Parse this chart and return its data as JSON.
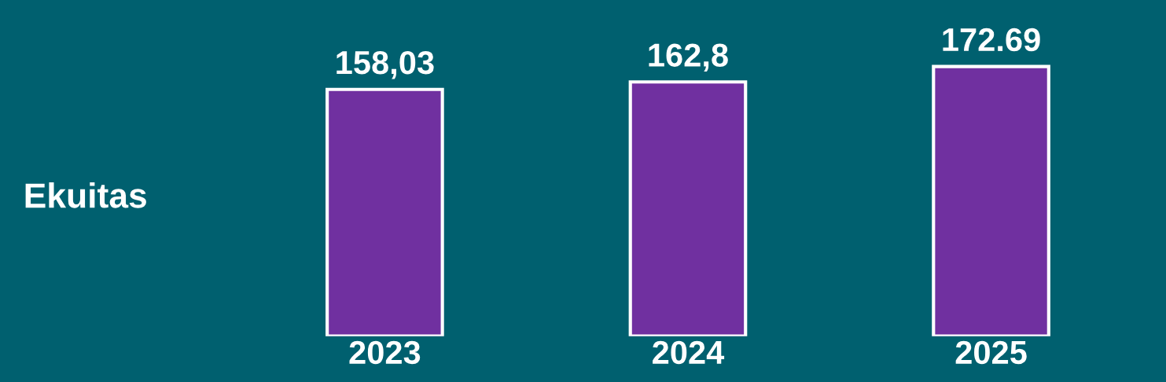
{
  "chart_data": {
    "type": "bar",
    "ylabel": "Ekuitas",
    "categories": [
      "2023",
      "2024",
      "2025"
    ],
    "series": [
      {
        "color": "#7030a0",
        "values": [
          158.03,
          162.8,
          172.69
        ],
        "value_labels": [
          "158,03",
          "162,8",
          "172.69"
        ]
      }
    ],
    "grid": false,
    "legend": false,
    "tick_labels": "x"
  }
}
